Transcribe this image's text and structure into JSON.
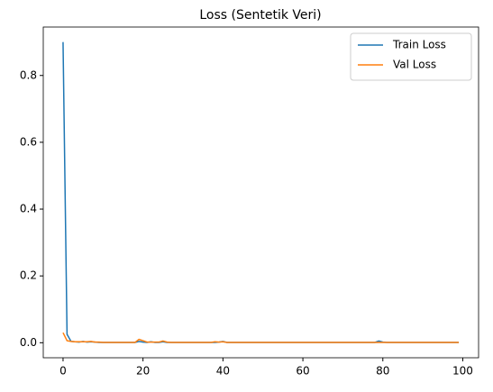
{
  "chart_data": {
    "type": "line",
    "title": "Loss (Sentetik Veri)",
    "x": [
      0,
      1,
      2,
      3,
      4,
      5,
      6,
      7,
      8,
      9,
      10,
      11,
      12,
      13,
      14,
      15,
      16,
      17,
      18,
      19,
      20,
      21,
      22,
      23,
      24,
      25,
      26,
      27,
      28,
      29,
      30,
      31,
      32,
      33,
      34,
      35,
      36,
      37,
      38,
      39,
      40,
      41,
      42,
      43,
      44,
      45,
      46,
      47,
      48,
      49,
      50,
      51,
      52,
      53,
      54,
      55,
      56,
      57,
      58,
      59,
      60,
      61,
      62,
      63,
      64,
      65,
      66,
      67,
      68,
      69,
      70,
      71,
      72,
      73,
      74,
      75,
      76,
      77,
      78,
      79,
      80,
      81,
      82,
      83,
      84,
      85,
      86,
      87,
      88,
      89,
      90,
      91,
      92,
      93,
      94,
      95,
      96,
      97,
      98,
      99
    ],
    "series": [
      {
        "name": "Train Loss",
        "color": "#1f77b4",
        "values": [
          0.9,
          0.025,
          0.004,
          0.003,
          0.002,
          0.004,
          0.002,
          0.003,
          0.002,
          0.001,
          0.001,
          0.001,
          0.001,
          0.001,
          0.001,
          0.001,
          0.001,
          0.001,
          0.001,
          0.004,
          0.002,
          0.001,
          0.003,
          0.001,
          0.001,
          0.003,
          0.001,
          0.001,
          0.001,
          0.001,
          0.001,
          0.001,
          0.001,
          0.001,
          0.001,
          0.001,
          0.001,
          0.001,
          0.001,
          0.002,
          0.004,
          0.001,
          0.001,
          0.001,
          0.001,
          0.001,
          0.001,
          0.001,
          0.001,
          0.001,
          0.001,
          0.001,
          0.001,
          0.001,
          0.001,
          0.001,
          0.001,
          0.001,
          0.001,
          0.001,
          0.001,
          0.001,
          0.001,
          0.001,
          0.001,
          0.001,
          0.001,
          0.001,
          0.001,
          0.001,
          0.001,
          0.001,
          0.001,
          0.001,
          0.001,
          0.001,
          0.001,
          0.001,
          0.001,
          0.005,
          0.002,
          0.001,
          0.001,
          0.001,
          0.001,
          0.001,
          0.001,
          0.001,
          0.001,
          0.001,
          0.001,
          0.001,
          0.001,
          0.001,
          0.001,
          0.001,
          0.001,
          0.001,
          0.001,
          0.001
        ]
      },
      {
        "name": "Val Loss",
        "color": "#ff7f0e",
        "values": [
          0.03,
          0.006,
          0.004,
          0.003,
          0.003,
          0.003,
          0.003,
          0.004,
          0.002,
          0.002,
          0.001,
          0.001,
          0.001,
          0.001,
          0.001,
          0.001,
          0.001,
          0.001,
          0.001,
          0.01,
          0.006,
          0.002,
          0.002,
          0.002,
          0.002,
          0.005,
          0.002,
          0.001,
          0.001,
          0.001,
          0.001,
          0.001,
          0.001,
          0.001,
          0.001,
          0.001,
          0.001,
          0.001,
          0.003,
          0.002,
          0.003,
          0.001,
          0.001,
          0.001,
          0.001,
          0.001,
          0.001,
          0.001,
          0.001,
          0.001,
          0.001,
          0.001,
          0.001,
          0.001,
          0.001,
          0.001,
          0.001,
          0.001,
          0.001,
          0.001,
          0.001,
          0.001,
          0.001,
          0.001,
          0.001,
          0.001,
          0.001,
          0.001,
          0.001,
          0.001,
          0.001,
          0.001,
          0.001,
          0.001,
          0.001,
          0.001,
          0.001,
          0.001,
          0.001,
          0.001,
          0.001,
          0.001,
          0.001,
          0.001,
          0.001,
          0.001,
          0.001,
          0.001,
          0.001,
          0.001,
          0.001,
          0.001,
          0.001,
          0.001,
          0.001,
          0.001,
          0.001,
          0.001,
          0.001,
          0.001
        ]
      }
    ],
    "xlim": [
      -4.95,
      103.95
    ],
    "xticks": [
      0,
      20,
      40,
      60,
      80,
      100
    ],
    "ylim": [
      -0.045,
      0.945
    ],
    "yticks": [
      {
        "value": 0,
        "label": "0.0"
      },
      0.2,
      0.4,
      0.6,
      0.8
    ],
    "legend": "upper right",
    "grid": false
  }
}
